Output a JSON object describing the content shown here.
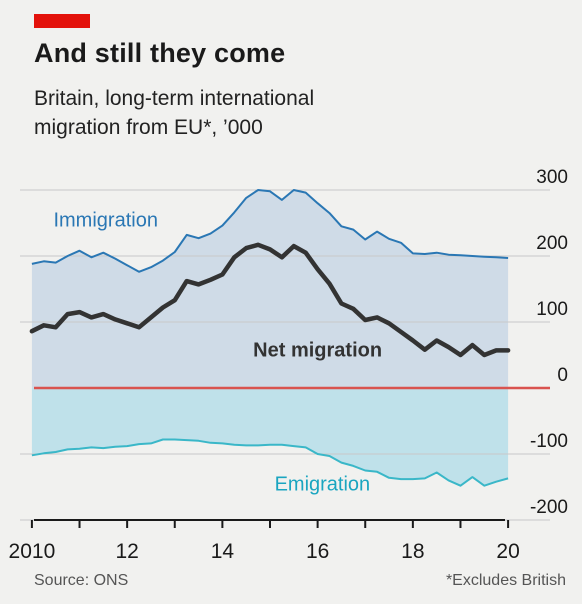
{
  "header": {
    "title": "And still they come",
    "subtitle_lines": [
      "Britain, long-term international",
      "migration from EU*, ’000"
    ]
  },
  "footer": {
    "source": "Source: ONS",
    "footnote": "*Excludes British"
  },
  "colors": {
    "accent_red": "#e3120b",
    "immigration_line": "#2a77b4",
    "immigration_fill": "#cfdbe7",
    "emigration_line": "#3ab7c8",
    "emigration_fill": "#bfe1ea",
    "net_line": "#333333",
    "zero_line": "#d9534f",
    "grid": "#c8c8c8",
    "immigration_label": "#2a77b4",
    "emigration_label": "#1aa5c0",
    "net_label": "#333333"
  },
  "chart_data": {
    "type": "line",
    "title": "And still they come",
    "xlabel": "",
    "ylabel": "",
    "xlim": [
      2009.75,
      2020.25
    ],
    "ylim": [
      -200,
      300
    ],
    "y_ticks": [
      300,
      200,
      100,
      0,
      -100,
      -200
    ],
    "y_tick_labels": [
      "300",
      "200",
      "100",
      "0",
      "-100",
      "-200"
    ],
    "x_tick_labels": [
      {
        "x": 2010,
        "label": "2010"
      },
      {
        "x": 2012,
        "label": "12"
      },
      {
        "x": 2014,
        "label": "14"
      },
      {
        "x": 2016,
        "label": "16"
      },
      {
        "x": 2018,
        "label": "18"
      },
      {
        "x": 2020,
        "label": "20"
      }
    ],
    "x_minor_ticks": [
      2010,
      2011,
      2012,
      2013,
      2014,
      2015,
      2016,
      2017,
      2018,
      2019,
      2020
    ],
    "grid": true,
    "series": [
      {
        "name": "Immigration",
        "x": [
          2010.0,
          2010.25,
          2010.5,
          2010.75,
          2011.0,
          2011.25,
          2011.5,
          2011.75,
          2012.0,
          2012.25,
          2012.5,
          2012.75,
          2013.0,
          2013.25,
          2013.5,
          2013.75,
          2014.0,
          2014.25,
          2014.5,
          2014.75,
          2015.0,
          2015.25,
          2015.5,
          2015.75,
          2016.0,
          2016.25,
          2016.5,
          2016.75,
          2017.0,
          2017.25,
          2017.5,
          2017.75,
          2018.0,
          2018.25,
          2018.5,
          2018.75,
          2019.0,
          2019.25,
          2019.5,
          2019.75,
          2020.0
        ],
        "values": [
          188,
          192,
          190,
          200,
          208,
          198,
          205,
          196,
          186,
          176,
          183,
          193,
          206,
          232,
          227,
          234,
          246,
          266,
          288,
          300,
          298,
          285,
          300,
          296,
          280,
          265,
          245,
          240,
          225,
          237,
          226,
          220,
          204,
          203,
          205,
          202,
          201,
          200,
          199,
          198,
          197
        ]
      },
      {
        "name": "Net migration",
        "x": [
          2010.0,
          2010.25,
          2010.5,
          2010.75,
          2011.0,
          2011.25,
          2011.5,
          2011.75,
          2012.0,
          2012.25,
          2012.5,
          2012.75,
          2013.0,
          2013.25,
          2013.5,
          2013.75,
          2014.0,
          2014.25,
          2014.5,
          2014.75,
          2015.0,
          2015.25,
          2015.5,
          2015.75,
          2016.0,
          2016.25,
          2016.5,
          2016.75,
          2017.0,
          2017.25,
          2017.5,
          2017.75,
          2018.0,
          2018.25,
          2018.5,
          2018.75,
          2019.0,
          2019.25,
          2019.5,
          2019.75,
          2020.0
        ],
        "values": [
          86,
          95,
          92,
          112,
          115,
          107,
          112,
          104,
          98,
          92,
          107,
          122,
          133,
          162,
          157,
          164,
          172,
          198,
          212,
          217,
          210,
          198,
          215,
          205,
          180,
          158,
          128,
          120,
          103,
          107,
          98,
          85,
          72,
          58,
          72,
          62,
          50,
          65,
          50,
          57,
          57
        ]
      },
      {
        "name": "Emigration",
        "x": [
          2010.0,
          2010.25,
          2010.5,
          2010.75,
          2011.0,
          2011.25,
          2011.5,
          2011.75,
          2012.0,
          2012.25,
          2012.5,
          2012.75,
          2013.0,
          2013.25,
          2013.5,
          2013.75,
          2014.0,
          2014.25,
          2014.5,
          2014.75,
          2015.0,
          2015.25,
          2015.5,
          2015.75,
          2016.0,
          2016.25,
          2016.5,
          2016.75,
          2017.0,
          2017.25,
          2017.5,
          2017.75,
          2018.0,
          2018.25,
          2018.5,
          2018.75,
          2019.0,
          2019.25,
          2019.5,
          2019.75,
          2020.0
        ],
        "values": [
          -102,
          -99,
          -97,
          -93,
          -92,
          -90,
          -91,
          -89,
          -88,
          -85,
          -84,
          -78,
          -78,
          -79,
          -80,
          -83,
          -84,
          -86,
          -87,
          -87,
          -86,
          -86,
          -88,
          -90,
          -100,
          -103,
          -113,
          -118,
          -125,
          -127,
          -136,
          -138,
          -138,
          -137,
          -128,
          -140,
          -148,
          -135,
          -148,
          -142,
          -137
        ]
      }
    ],
    "annotations": [
      {
        "text": "Immigration",
        "series": "Immigration",
        "x": 2011.55,
        "y": 245
      },
      {
        "text": "Net migration",
        "series": "Net migration",
        "x": 2016.0,
        "y": 48
      },
      {
        "text": "Emigration",
        "series": "Emigration",
        "x": 2016.1,
        "y": -155
      }
    ]
  }
}
